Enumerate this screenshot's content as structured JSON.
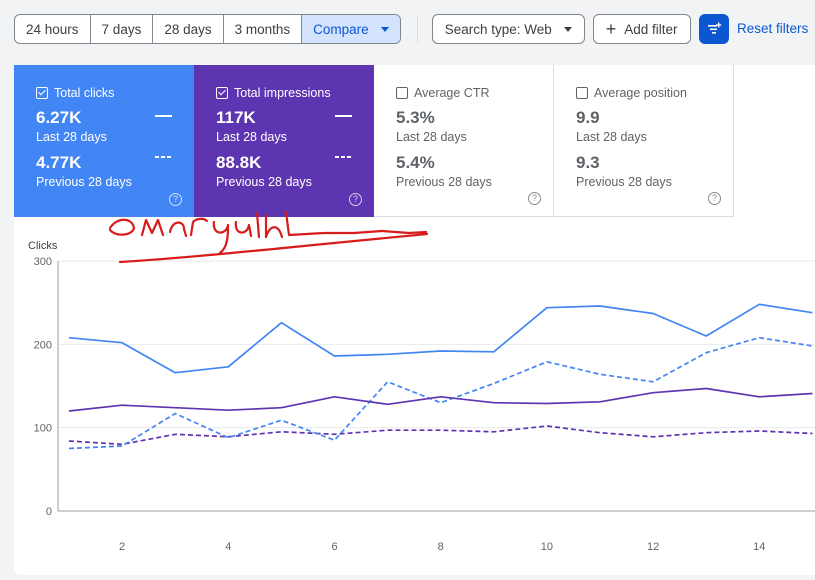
{
  "toolbar": {
    "ranges": [
      "24 hours",
      "7 days",
      "28 days",
      "3 months"
    ],
    "compare_label": "Compare",
    "search_type_label": "Search type: Web",
    "add_filter_label": "Add filter",
    "reset_filters_label": "Reset filters"
  },
  "metrics": {
    "clicks": {
      "label": "Total clicks",
      "current": "6.27K",
      "current_period": "Last 28 days",
      "previous": "4.77K",
      "previous_period": "Previous 28 days",
      "checked": true
    },
    "impressions": {
      "label": "Total impressions",
      "current": "117K",
      "current_period": "Last 28 days",
      "previous": "88.8K",
      "previous_period": "Previous 28 days",
      "checked": true
    },
    "ctr": {
      "label": "Average CTR",
      "current": "5.3%",
      "current_period": "Last 28 days",
      "previous": "5.4%",
      "previous_period": "Previous 28 days",
      "checked": false
    },
    "position": {
      "label": "Average position",
      "current": "9.9",
      "current_period": "Last 28 days",
      "previous": "9.3",
      "previous_period": "Previous 28 days",
      "checked": false
    }
  },
  "help_glyph": "?",
  "colors": {
    "clicks": "#4285f4",
    "impressions": "#5e35b1",
    "ink": "#d81b1b"
  },
  "chart_data": {
    "type": "line",
    "ylabel": "Clicks",
    "ylim": [
      0,
      300
    ],
    "yticks": [
      0,
      100,
      200,
      300
    ],
    "xticks": [
      2,
      4,
      6,
      8,
      10,
      12,
      14
    ],
    "x": [
      1,
      2,
      3,
      4,
      5,
      6,
      7,
      8,
      9,
      10,
      11,
      12,
      13,
      14,
      15
    ],
    "grid": true,
    "series": [
      {
        "metric": "clicks",
        "period": "current",
        "style": "solid",
        "values": [
          208,
          202,
          166,
          173,
          226,
          186,
          188,
          192,
          191,
          244,
          246,
          237,
          210,
          248,
          238
        ]
      },
      {
        "metric": "clicks",
        "period": "previous",
        "style": "dashed",
        "values": [
          75,
          78,
          117,
          88,
          109,
          85,
          155,
          130,
          153,
          179,
          164,
          155,
          190,
          208,
          198
        ]
      },
      {
        "metric": "impressions",
        "period": "current",
        "style": "solid",
        "values": [
          120,
          127,
          124,
          121,
          124,
          137,
          128,
          137,
          130,
          129,
          131,
          142,
          147,
          137,
          141
        ]
      },
      {
        "metric": "impressions",
        "period": "previous",
        "style": "dashed",
        "values": [
          84,
          80,
          92,
          89,
          95,
          92,
          97,
          97,
          95,
          102,
          94,
          89,
          94,
          96,
          93
        ]
      }
    ]
  }
}
